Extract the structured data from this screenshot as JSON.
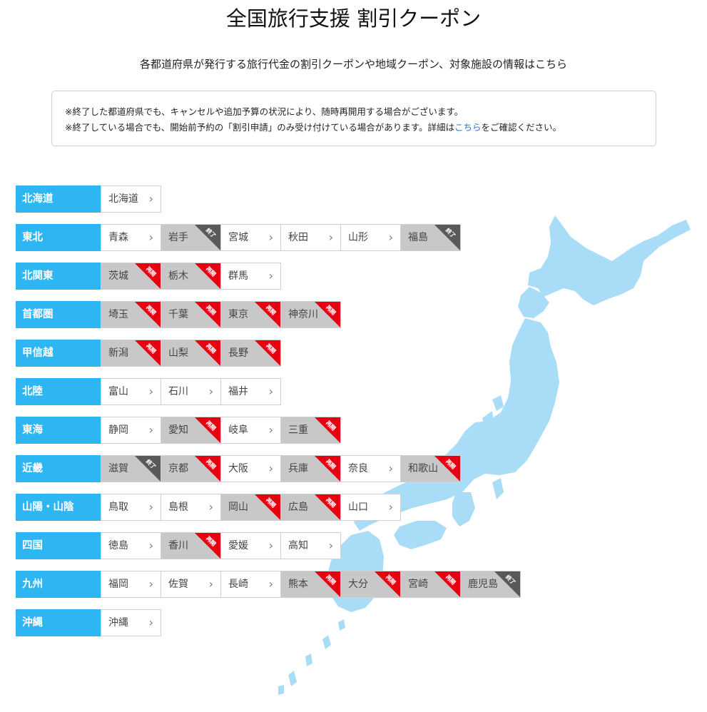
{
  "header": {
    "title": "全国旅行支援 割引クーポン",
    "subtitle": "各都道府県が発行する旅行代金の割引クーポンや地域クーポン、対象施設の情報はこちら"
  },
  "notice": {
    "line1": "※終了した都道府県でも、キャンセルや追加予算の状況により、随時再開用する場合がございます。",
    "line2_before": "※終了している場合でも、開始前予約の「割引申請」のみ受け付けている場合があります。詳細は",
    "line2_link": "こちら",
    "line2_after": "をご確認ください。"
  },
  "labels": {
    "ended": "終了",
    "reopen": "再開",
    "chevron": "›"
  },
  "colors": {
    "region_bg": "#2eb6f3",
    "reopen_tag": "#e60012",
    "ended_tag": "#595959",
    "map_fill": "#a9dcf6"
  },
  "regions": [
    {
      "name": "北海道",
      "prefs": [
        {
          "name": "北海道",
          "status": "normal"
        }
      ]
    },
    {
      "name": "東北",
      "prefs": [
        {
          "name": "青森",
          "status": "normal"
        },
        {
          "name": "岩手",
          "status": "ended"
        },
        {
          "name": "宮城",
          "status": "normal"
        },
        {
          "name": "秋田",
          "status": "normal"
        },
        {
          "name": "山形",
          "status": "normal"
        },
        {
          "name": "福島",
          "status": "ended"
        }
      ]
    },
    {
      "name": "北関東",
      "prefs": [
        {
          "name": "茨城",
          "status": "reopen"
        },
        {
          "name": "栃木",
          "status": "reopen"
        },
        {
          "name": "群馬",
          "status": "normal"
        }
      ]
    },
    {
      "name": "首都圏",
      "prefs": [
        {
          "name": "埼玉",
          "status": "reopen"
        },
        {
          "name": "千葉",
          "status": "reopen"
        },
        {
          "name": "東京",
          "status": "reopen"
        },
        {
          "name": "神奈川",
          "status": "reopen"
        }
      ]
    },
    {
      "name": "甲信越",
      "prefs": [
        {
          "name": "新潟",
          "status": "reopen"
        },
        {
          "name": "山梨",
          "status": "reopen"
        },
        {
          "name": "長野",
          "status": "reopen"
        }
      ]
    },
    {
      "name": "北陸",
      "prefs": [
        {
          "name": "富山",
          "status": "normal"
        },
        {
          "name": "石川",
          "status": "normal"
        },
        {
          "name": "福井",
          "status": "normal"
        }
      ]
    },
    {
      "name": "東海",
      "prefs": [
        {
          "name": "静岡",
          "status": "normal"
        },
        {
          "name": "愛知",
          "status": "reopen"
        },
        {
          "name": "岐阜",
          "status": "normal"
        },
        {
          "name": "三重",
          "status": "reopen"
        }
      ]
    },
    {
      "name": "近畿",
      "prefs": [
        {
          "name": "滋賀",
          "status": "ended"
        },
        {
          "name": "京都",
          "status": "reopen"
        },
        {
          "name": "大阪",
          "status": "normal"
        },
        {
          "name": "兵庫",
          "status": "reopen"
        },
        {
          "name": "奈良",
          "status": "normal"
        },
        {
          "name": "和歌山",
          "status": "reopen"
        }
      ]
    },
    {
      "name": "山陽・山陰",
      "prefs": [
        {
          "name": "鳥取",
          "status": "normal"
        },
        {
          "name": "島根",
          "status": "normal"
        },
        {
          "name": "岡山",
          "status": "reopen"
        },
        {
          "name": "広島",
          "status": "reopen"
        },
        {
          "name": "山口",
          "status": "normal"
        }
      ]
    },
    {
      "name": "四国",
      "prefs": [
        {
          "name": "徳島",
          "status": "normal"
        },
        {
          "name": "香川",
          "status": "reopen"
        },
        {
          "name": "愛媛",
          "status": "normal"
        },
        {
          "name": "高知",
          "status": "normal"
        }
      ]
    },
    {
      "name": "九州",
      "prefs": [
        {
          "name": "福岡",
          "status": "normal"
        },
        {
          "name": "佐賀",
          "status": "normal"
        },
        {
          "name": "長崎",
          "status": "normal"
        },
        {
          "name": "熊本",
          "status": "reopen"
        },
        {
          "name": "大分",
          "status": "reopen"
        },
        {
          "name": "宮崎",
          "status": "reopen"
        },
        {
          "name": "鹿児島",
          "status": "ended"
        }
      ]
    },
    {
      "name": "沖縄",
      "prefs": [
        {
          "name": "沖縄",
          "status": "normal"
        }
      ]
    }
  ]
}
